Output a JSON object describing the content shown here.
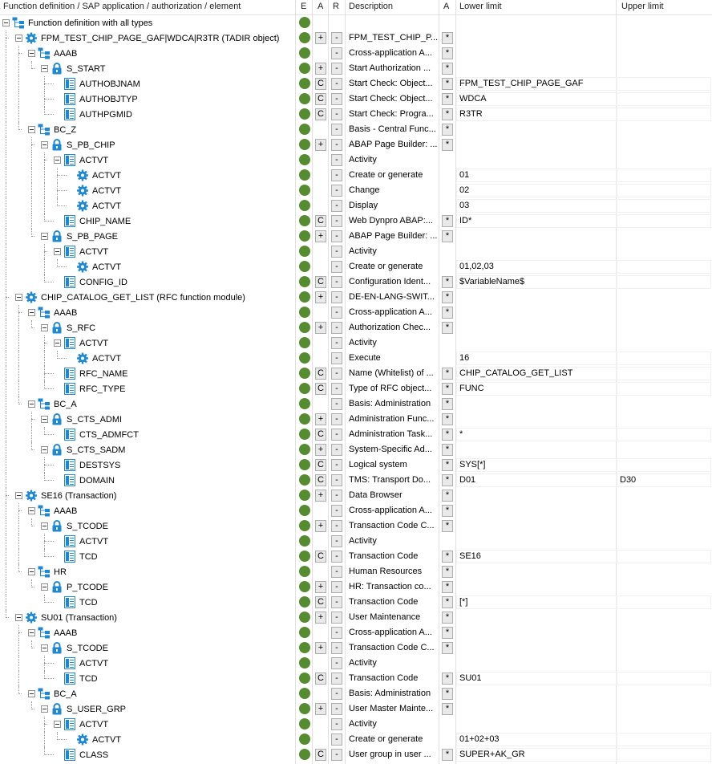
{
  "header": {
    "tree_col": "Function definition / SAP application / authorization / element",
    "e_col": "E",
    "a_col": "A",
    "r_col": "R",
    "desc_col": "Description",
    "a2_col": "A",
    "lower_col": "Lower limit",
    "upper_col": "Upper limit"
  },
  "colors": {
    "status_green": "#548c2f",
    "icon_blue": "#1e88d2",
    "button_bg": "#e9e9e9"
  },
  "rows": [
    {
      "level": 0,
      "icon": "tree-root-icon",
      "label": "Function definition with all types",
      "dot": true,
      "a": "",
      "r": "",
      "desc": "",
      "star": "",
      "lower": "",
      "upper": ""
    },
    {
      "level": 1,
      "icon": "gear-icon",
      "label": "FPM_TEST_CHIP_PAGE_GAF|WDCA|R3TR (TADIR object)",
      "dot": true,
      "a": "+",
      "r": "-",
      "desc": "FPM_TEST_CHIP_P...",
      "star": "*",
      "lower": "",
      "upper": ""
    },
    {
      "level": 2,
      "icon": "hierarchy-icon",
      "label": "AAAB",
      "dot": true,
      "a": "",
      "r": "-",
      "desc": "Cross-application A...",
      "star": "*",
      "lower": "",
      "upper": ""
    },
    {
      "level": 3,
      "icon": "lock-icon",
      "label": "S_START",
      "dot": true,
      "a": "+",
      "r": "-",
      "desc": "Start Authorization ...",
      "star": "*",
      "lower": "",
      "upper": ""
    },
    {
      "level": 4,
      "icon": "field-icon",
      "label": "AUTHOBJNAM",
      "dot": true,
      "a": "C",
      "r": "-",
      "desc": "Start Check: Object...",
      "star": "*",
      "lower": "FPM_TEST_CHIP_PAGE_GAF",
      "upper": ""
    },
    {
      "level": 4,
      "icon": "field-icon",
      "label": "AUTHOBJTYP",
      "dot": true,
      "a": "C",
      "r": "-",
      "desc": "Start Check: Object...",
      "star": "*",
      "lower": "WDCA",
      "upper": ""
    },
    {
      "level": 4,
      "icon": "field-icon",
      "label": "AUTHPGMID",
      "dot": true,
      "a": "C",
      "r": "-",
      "desc": "Start Check: Progra...",
      "star": "*",
      "lower": "R3TR",
      "upper": ""
    },
    {
      "level": 2,
      "icon": "hierarchy-icon",
      "label": "BC_Z",
      "dot": true,
      "a": "",
      "r": "-",
      "desc": "Basis - Central Func...",
      "star": "*",
      "lower": "",
      "upper": ""
    },
    {
      "level": 3,
      "icon": "lock-icon",
      "label": "S_PB_CHIP",
      "dot": true,
      "a": "+",
      "r": "-",
      "desc": "ABAP Page Builder: ...",
      "star": "*",
      "lower": "",
      "upper": ""
    },
    {
      "level": 4,
      "icon": "field-icon",
      "label": "ACTVT",
      "dot": true,
      "a": "",
      "r": "-",
      "desc": "Activity",
      "star": "",
      "lower": "",
      "upper": ""
    },
    {
      "level": 5,
      "icon": "value-gear-icon",
      "label": "ACTVT",
      "dot": true,
      "a": "",
      "r": "-",
      "desc": "Create or generate",
      "star": "",
      "lower": "01",
      "upper": ""
    },
    {
      "level": 5,
      "icon": "value-gear-icon",
      "label": "ACTVT",
      "dot": true,
      "a": "",
      "r": "-",
      "desc": "Change",
      "star": "",
      "lower": "02",
      "upper": ""
    },
    {
      "level": 5,
      "icon": "value-gear-icon",
      "label": "ACTVT",
      "dot": true,
      "a": "",
      "r": "-",
      "desc": "Display",
      "star": "",
      "lower": "03",
      "upper": ""
    },
    {
      "level": 4,
      "icon": "field-icon",
      "label": "CHIP_NAME",
      "dot": true,
      "a": "C",
      "r": "-",
      "desc": "Web Dynpro ABAP:...",
      "star": "*",
      "lower": "ID*",
      "upper": ""
    },
    {
      "level": 3,
      "icon": "lock-icon",
      "label": "S_PB_PAGE",
      "dot": true,
      "a": "+",
      "r": "-",
      "desc": "ABAP Page Builder: ...",
      "star": "*",
      "lower": "",
      "upper": ""
    },
    {
      "level": 4,
      "icon": "field-icon",
      "label": "ACTVT",
      "dot": true,
      "a": "",
      "r": "-",
      "desc": "Activity",
      "star": "",
      "lower": "",
      "upper": ""
    },
    {
      "level": 5,
      "icon": "value-gear-icon",
      "label": "ACTVT",
      "dot": true,
      "a": "",
      "r": "-",
      "desc": "Create or generate",
      "star": "",
      "lower": "01,02,03",
      "upper": ""
    },
    {
      "level": 4,
      "icon": "field-icon",
      "label": "CONFIG_ID",
      "dot": true,
      "a": "C",
      "r": "-",
      "desc": "Configuration Ident...",
      "star": "*",
      "lower": "$VariableName$",
      "upper": ""
    },
    {
      "level": 1,
      "icon": "gear-icon",
      "label": "CHIP_CATALOG_GET_LIST (RFC function module)",
      "dot": true,
      "a": "+",
      "r": "-",
      "desc": "DE-EN-LANG-SWIT...",
      "star": "*",
      "lower": "",
      "upper": ""
    },
    {
      "level": 2,
      "icon": "hierarchy-icon",
      "label": "AAAB",
      "dot": true,
      "a": "",
      "r": "-",
      "desc": "Cross-application A...",
      "star": "*",
      "lower": "",
      "upper": ""
    },
    {
      "level": 3,
      "icon": "lock-icon",
      "label": "S_RFC",
      "dot": true,
      "a": "+",
      "r": "-",
      "desc": "Authorization Chec...",
      "star": "*",
      "lower": "",
      "upper": ""
    },
    {
      "level": 4,
      "icon": "field-icon",
      "label": "ACTVT",
      "dot": true,
      "a": "",
      "r": "-",
      "desc": "Activity",
      "star": "",
      "lower": "",
      "upper": ""
    },
    {
      "level": 5,
      "icon": "value-gear-icon",
      "label": "ACTVT",
      "dot": true,
      "a": "",
      "r": "-",
      "desc": "Execute",
      "star": "",
      "lower": "16",
      "upper": ""
    },
    {
      "level": 4,
      "icon": "field-icon",
      "label": "RFC_NAME",
      "dot": true,
      "a": "C",
      "r": "-",
      "desc": "Name (Whitelist) of ...",
      "star": "*",
      "lower": "CHIP_CATALOG_GET_LIST",
      "upper": ""
    },
    {
      "level": 4,
      "icon": "field-icon",
      "label": "RFC_TYPE",
      "dot": true,
      "a": "C",
      "r": "-",
      "desc": "Type of RFC object...",
      "star": "*",
      "lower": "FUNC",
      "upper": ""
    },
    {
      "level": 2,
      "icon": "hierarchy-icon",
      "label": "BC_A",
      "dot": true,
      "a": "",
      "r": "-",
      "desc": "Basis: Administration",
      "star": "*",
      "lower": "",
      "upper": ""
    },
    {
      "level": 3,
      "icon": "lock-icon",
      "label": "S_CTS_ADMI",
      "dot": true,
      "a": "+",
      "r": "-",
      "desc": "Administration Func...",
      "star": "*",
      "lower": "",
      "upper": ""
    },
    {
      "level": 4,
      "icon": "field-icon",
      "label": "CTS_ADMFCT",
      "dot": true,
      "a": "C",
      "r": "-",
      "desc": "Administration Task...",
      "star": "*",
      "lower": "*",
      "upper": ""
    },
    {
      "level": 3,
      "icon": "lock-icon",
      "label": "S_CTS_SADM",
      "dot": true,
      "a": "+",
      "r": "-",
      "desc": "System-Specific Ad...",
      "star": "*",
      "lower": "",
      "upper": ""
    },
    {
      "level": 4,
      "icon": "field-icon",
      "label": "DESTSYS",
      "dot": true,
      "a": "C",
      "r": "-",
      "desc": "Logical system",
      "star": "*",
      "lower": "SYS[*]",
      "upper": ""
    },
    {
      "level": 4,
      "icon": "field-icon",
      "label": "DOMAIN",
      "dot": true,
      "a": "C",
      "r": "-",
      "desc": "TMS: Transport Do...",
      "star": "*",
      "lower": "D01",
      "upper": "D30"
    },
    {
      "level": 1,
      "icon": "gear-icon",
      "label": "SE16 (Transaction)",
      "dot": true,
      "a": "+",
      "r": "-",
      "desc": "Data Browser",
      "star": "*",
      "lower": "",
      "upper": ""
    },
    {
      "level": 2,
      "icon": "hierarchy-icon",
      "label": "AAAB",
      "dot": true,
      "a": "",
      "r": "-",
      "desc": "Cross-application A...",
      "star": "*",
      "lower": "",
      "upper": ""
    },
    {
      "level": 3,
      "icon": "lock-icon",
      "label": "S_TCODE",
      "dot": true,
      "a": "+",
      "r": "-",
      "desc": "Transaction Code C...",
      "star": "*",
      "lower": "",
      "upper": ""
    },
    {
      "level": 4,
      "icon": "field-icon",
      "label": "ACTVT",
      "dot": true,
      "a": "",
      "r": "-",
      "desc": "Activity",
      "star": "",
      "lower": "",
      "upper": ""
    },
    {
      "level": 4,
      "icon": "field-icon",
      "label": "TCD",
      "dot": true,
      "a": "C",
      "r": "-",
      "desc": "Transaction Code",
      "star": "*",
      "lower": "SE16",
      "upper": ""
    },
    {
      "level": 2,
      "icon": "hierarchy-icon",
      "label": "HR",
      "dot": true,
      "a": "",
      "r": "-",
      "desc": "Human Resources",
      "star": "*",
      "lower": "",
      "upper": ""
    },
    {
      "level": 3,
      "icon": "lock-icon",
      "label": "P_TCODE",
      "dot": true,
      "a": "+",
      "r": "-",
      "desc": "HR: Transaction co...",
      "star": "*",
      "lower": "",
      "upper": ""
    },
    {
      "level": 4,
      "icon": "field-icon",
      "label": "TCD",
      "dot": true,
      "a": "C",
      "r": "-",
      "desc": "Transaction Code",
      "star": "*",
      "lower": "[*]",
      "upper": ""
    },
    {
      "level": 1,
      "icon": "gear-icon",
      "label": "SU01 (Transaction)",
      "dot": true,
      "a": "+",
      "r": "-",
      "desc": "User Maintenance",
      "star": "*",
      "lower": "",
      "upper": ""
    },
    {
      "level": 2,
      "icon": "hierarchy-icon",
      "label": "AAAB",
      "dot": true,
      "a": "",
      "r": "-",
      "desc": "Cross-application A...",
      "star": "*",
      "lower": "",
      "upper": ""
    },
    {
      "level": 3,
      "icon": "lock-icon",
      "label": "S_TCODE",
      "dot": true,
      "a": "+",
      "r": "-",
      "desc": "Transaction Code C...",
      "star": "*",
      "lower": "",
      "upper": ""
    },
    {
      "level": 4,
      "icon": "field-icon",
      "label": "ACTVT",
      "dot": true,
      "a": "",
      "r": "-",
      "desc": "Activity",
      "star": "",
      "lower": "",
      "upper": ""
    },
    {
      "level": 4,
      "icon": "field-icon",
      "label": "TCD",
      "dot": true,
      "a": "C",
      "r": "-",
      "desc": "Transaction Code",
      "star": "*",
      "lower": "SU01",
      "upper": ""
    },
    {
      "level": 2,
      "icon": "hierarchy-icon",
      "label": "BC_A",
      "dot": true,
      "a": "",
      "r": "-",
      "desc": "Basis: Administration",
      "star": "*",
      "lower": "",
      "upper": ""
    },
    {
      "level": 3,
      "icon": "lock-icon",
      "label": "S_USER_GRP",
      "dot": true,
      "a": "+",
      "r": "-",
      "desc": "User Master Mainte...",
      "star": "*",
      "lower": "",
      "upper": ""
    },
    {
      "level": 4,
      "icon": "field-icon",
      "label": "ACTVT",
      "dot": true,
      "a": "",
      "r": "-",
      "desc": "Activity",
      "star": "",
      "lower": "",
      "upper": ""
    },
    {
      "level": 5,
      "icon": "value-gear-icon",
      "label": "ACTVT",
      "dot": true,
      "a": "",
      "r": "-",
      "desc": "Create or generate",
      "star": "",
      "lower": "01+02+03",
      "upper": ""
    },
    {
      "level": 4,
      "icon": "field-icon",
      "label": "CLASS",
      "dot": true,
      "a": "C",
      "r": "-",
      "desc": "User group in user ...",
      "star": "*",
      "lower": "SUPER+AK_GR",
      "upper": ""
    }
  ]
}
